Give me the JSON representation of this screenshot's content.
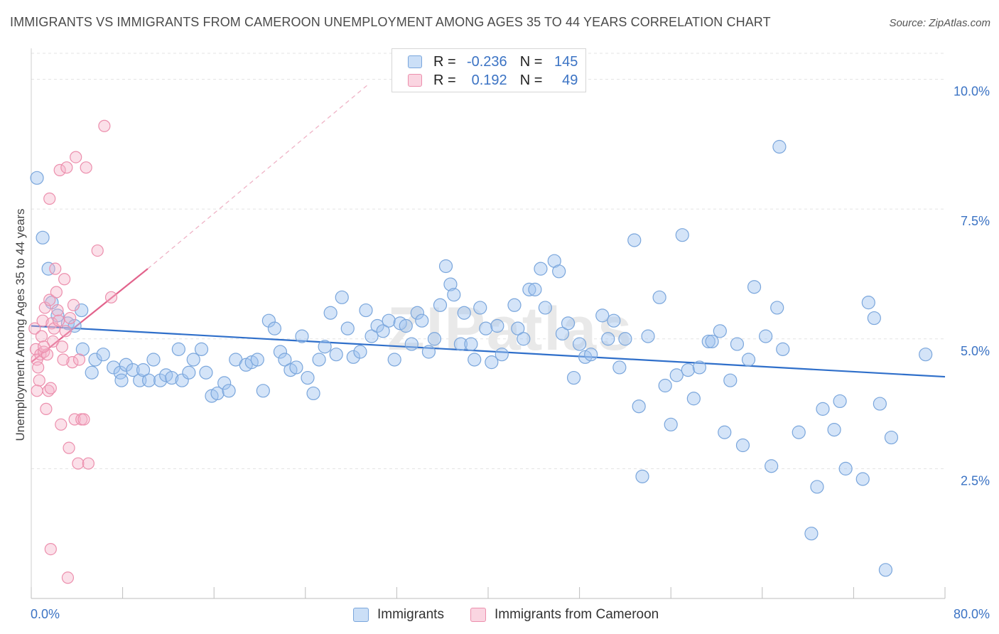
{
  "header": {
    "title": "IMMIGRANTS VS IMMIGRANTS FROM CAMEROON UNEMPLOYMENT AMONG AGES 35 TO 44 YEARS CORRELATION CHART",
    "source": "Source: ZipAtlas.com"
  },
  "watermark": "ZIPatlas",
  "legend": {
    "rows": [
      {
        "r_label": "R =",
        "r_value": "-0.236",
        "n_label": "N =",
        "n_value": "145"
      },
      {
        "r_label": "R =",
        "r_value": "0.192",
        "n_label": "N =",
        "n_value": "49"
      }
    ]
  },
  "bottom_legend": {
    "items": [
      {
        "label": "Immigrants"
      },
      {
        "label": "Immigrants from Cameroon"
      }
    ]
  },
  "colors": {
    "blue_fill": "rgba(160,196,240,0.45)",
    "blue_stroke": "#7aa6dc",
    "blue_line": "#2f6fca",
    "pink_fill": "rgba(246,178,200,0.40)",
    "pink_stroke": "#ec8fad",
    "pink_line": "#e2638c",
    "grid": "#e3e3e3",
    "tick_label": "#3b73c4"
  },
  "chart_data": {
    "type": "scatter",
    "title": "IMMIGRANTS VS IMMIGRANTS FROM CAMEROON UNEMPLOYMENT AMONG AGES 35 TO 44 YEARS CORRELATION CHART",
    "xlabel": "",
    "ylabel": "Unemployment Among Ages 35 to 44 years",
    "xlim": [
      0,
      80
    ],
    "ylim": [
      0,
      10.5
    ],
    "x_tick_labels": [
      "0.0%",
      "80.0%"
    ],
    "y_ticks": [
      {
        "value": 2.5,
        "label": "2.5%"
      },
      {
        "value": 5.0,
        "label": "5.0%"
      },
      {
        "value": 7.5,
        "label": "7.5%"
      },
      {
        "value": 10.0,
        "label": "10.0%"
      }
    ],
    "series": [
      {
        "name": "Immigrants",
        "r": -0.236,
        "n": 145,
        "trend": {
          "x": [
            0,
            80
          ],
          "y": [
            5.25,
            4.27
          ]
        },
        "points": [
          [
            0.5,
            8.1
          ],
          [
            1,
            6.95
          ],
          [
            1.5,
            6.35
          ],
          [
            1.8,
            5.7
          ],
          [
            2.3,
            5.45
          ],
          [
            3.2,
            5.3
          ],
          [
            4.4,
            5.55
          ],
          [
            3.8,
            5.25
          ],
          [
            4.5,
            4.8
          ],
          [
            5.3,
            4.35
          ],
          [
            5.6,
            4.6
          ],
          [
            6.3,
            4.7
          ],
          [
            7.2,
            4.45
          ],
          [
            7.8,
            4.35
          ],
          [
            7.9,
            4.2
          ],
          [
            8.3,
            4.5
          ],
          [
            8.9,
            4.4
          ],
          [
            9.5,
            4.2
          ],
          [
            9.8,
            4.4
          ],
          [
            10.3,
            4.2
          ],
          [
            10.7,
            4.6
          ],
          [
            11.3,
            4.2
          ],
          [
            11.8,
            4.3
          ],
          [
            12.3,
            4.25
          ],
          [
            12.9,
            4.8
          ],
          [
            13.2,
            4.2
          ],
          [
            13.8,
            4.35
          ],
          [
            14.2,
            4.6
          ],
          [
            14.9,
            4.8
          ],
          [
            15.3,
            4.35
          ],
          [
            15.8,
            3.9
          ],
          [
            16.3,
            3.95
          ],
          [
            16.9,
            4.15
          ],
          [
            17.3,
            4.0
          ],
          [
            17.9,
            4.6
          ],
          [
            18.8,
            4.5
          ],
          [
            19.3,
            4.55
          ],
          [
            19.8,
            4.6
          ],
          [
            20.3,
            4.0
          ],
          [
            20.8,
            5.35
          ],
          [
            21.3,
            5.2
          ],
          [
            21.8,
            4.75
          ],
          [
            22.2,
            4.6
          ],
          [
            22.7,
            4.4
          ],
          [
            23.2,
            4.45
          ],
          [
            23.7,
            5.05
          ],
          [
            24.2,
            4.25
          ],
          [
            24.7,
            3.95
          ],
          [
            25.2,
            4.6
          ],
          [
            25.7,
            4.85
          ],
          [
            26.2,
            5.5
          ],
          [
            26.7,
            4.7
          ],
          [
            27.2,
            5.8
          ],
          [
            27.7,
            5.2
          ],
          [
            28.2,
            4.65
          ],
          [
            28.8,
            4.75
          ],
          [
            29.3,
            5.55
          ],
          [
            29.8,
            5.05
          ],
          [
            30.3,
            5.25
          ],
          [
            30.8,
            5.15
          ],
          [
            31.3,
            5.35
          ],
          [
            31.8,
            4.6
          ],
          [
            32.3,
            5.3
          ],
          [
            32.8,
            5.25
          ],
          [
            33.3,
            4.9
          ],
          [
            33.8,
            5.5
          ],
          [
            34.2,
            5.35
          ],
          [
            34.8,
            4.75
          ],
          [
            35.3,
            5.0
          ],
          [
            35.8,
            5.65
          ],
          [
            36.3,
            6.4
          ],
          [
            36.7,
            6.05
          ],
          [
            37.0,
            5.85
          ],
          [
            37.6,
            4.9
          ],
          [
            37.9,
            5.5
          ],
          [
            38.5,
            4.9
          ],
          [
            38.8,
            4.6
          ],
          [
            39.3,
            5.6
          ],
          [
            39.8,
            5.2
          ],
          [
            40.3,
            4.55
          ],
          [
            40.8,
            5.25
          ],
          [
            41.2,
            4.7
          ],
          [
            42.3,
            5.65
          ],
          [
            42.6,
            5.2
          ],
          [
            43.1,
            5.0
          ],
          [
            43.6,
            5.95
          ],
          [
            44.1,
            5.95
          ],
          [
            44.6,
            6.35
          ],
          [
            45.0,
            5.6
          ],
          [
            45.8,
            6.5
          ],
          [
            46.2,
            6.3
          ],
          [
            46.5,
            5.1
          ],
          [
            47.0,
            5.3
          ],
          [
            47.5,
            4.25
          ],
          [
            48.0,
            4.9
          ],
          [
            48.5,
            4.65
          ],
          [
            49.0,
            4.7
          ],
          [
            50.0,
            5.45
          ],
          [
            50.5,
            5.0
          ],
          [
            51.0,
            5.35
          ],
          [
            51.5,
            4.45
          ],
          [
            52.0,
            5.0
          ],
          [
            52.8,
            6.9
          ],
          [
            53.2,
            3.7
          ],
          [
            53.5,
            2.35
          ],
          [
            54.0,
            5.05
          ],
          [
            55.0,
            5.8
          ],
          [
            55.5,
            4.1
          ],
          [
            56.0,
            3.35
          ],
          [
            56.5,
            4.3
          ],
          [
            57.0,
            7.0
          ],
          [
            57.5,
            4.4
          ],
          [
            58.0,
            3.85
          ],
          [
            58.5,
            4.45
          ],
          [
            59.3,
            4.95
          ],
          [
            59.6,
            4.95
          ],
          [
            60.3,
            5.15
          ],
          [
            60.7,
            3.2
          ],
          [
            61.2,
            4.2
          ],
          [
            61.8,
            4.9
          ],
          [
            62.3,
            2.95
          ],
          [
            62.8,
            4.6
          ],
          [
            63.3,
            6.0
          ],
          [
            64.3,
            5.05
          ],
          [
            64.8,
            2.55
          ],
          [
            65.3,
            5.6
          ],
          [
            65.8,
            4.8
          ],
          [
            67.2,
            3.2
          ],
          [
            68.3,
            1.25
          ],
          [
            68.8,
            2.15
          ],
          [
            69.3,
            3.65
          ],
          [
            70.3,
            3.25
          ],
          [
            70.8,
            3.8
          ],
          [
            71.3,
            2.5
          ],
          [
            72.8,
            2.3
          ],
          [
            73.3,
            5.7
          ],
          [
            73.8,
            5.4
          ],
          [
            74.3,
            3.75
          ],
          [
            74.8,
            0.55
          ],
          [
            75.3,
            3.1
          ],
          [
            78.3,
            4.7
          ],
          [
            65.5,
            8.7
          ]
        ]
      },
      {
        "name": "Immigrants from Cameroon",
        "r": 0.192,
        "n": 49,
        "trend": {
          "x": [
            0,
            10.2
          ],
          "y": [
            4.55,
            6.35
          ]
        },
        "trend_extension": {
          "x": [
            10.2,
            29.5
          ],
          "y": [
            6.35,
            9.9
          ]
        },
        "points": [
          [
            0.3,
            5.2
          ],
          [
            0.4,
            4.8
          ],
          [
            0.5,
            4.6
          ],
          [
            0.6,
            4.45
          ],
          [
            0.7,
            4.2
          ],
          [
            0.5,
            4.0
          ],
          [
            0.8,
            4.7
          ],
          [
            0.9,
            5.05
          ],
          [
            1.0,
            5.35
          ],
          [
            1.1,
            4.75
          ],
          [
            1.2,
            5.6
          ],
          [
            1.3,
            3.65
          ],
          [
            1.4,
            4.7
          ],
          [
            1.5,
            4.0
          ],
          [
            1.6,
            5.75
          ],
          [
            1.7,
            4.05
          ],
          [
            1.8,
            5.3
          ],
          [
            1.9,
            4.95
          ],
          [
            2.0,
            5.2
          ],
          [
            2.1,
            6.35
          ],
          [
            2.2,
            5.9
          ],
          [
            2.3,
            5.55
          ],
          [
            2.4,
            5.35
          ],
          [
            2.5,
            8.25
          ],
          [
            2.6,
            3.35
          ],
          [
            2.7,
            4.85
          ],
          [
            2.9,
            6.15
          ],
          [
            3.0,
            5.15
          ],
          [
            3.1,
            8.3
          ],
          [
            3.3,
            2.9
          ],
          [
            3.4,
            5.4
          ],
          [
            3.6,
            4.55
          ],
          [
            3.8,
            3.45
          ],
          [
            3.9,
            8.5
          ],
          [
            4.1,
            2.6
          ],
          [
            4.4,
            3.45
          ],
          [
            4.6,
            3.45
          ],
          [
            4.8,
            8.3
          ],
          [
            5.0,
            2.6
          ],
          [
            5.8,
            6.7
          ],
          [
            6.4,
            9.1
          ],
          [
            7.0,
            5.8
          ],
          [
            1.6,
            7.7
          ],
          [
            1.7,
            0.95
          ],
          [
            3.2,
            0.4
          ],
          [
            1.1,
            4.85
          ],
          [
            2.8,
            4.6
          ],
          [
            4.2,
            4.6
          ],
          [
            3.7,
            5.65
          ]
        ]
      }
    ]
  }
}
